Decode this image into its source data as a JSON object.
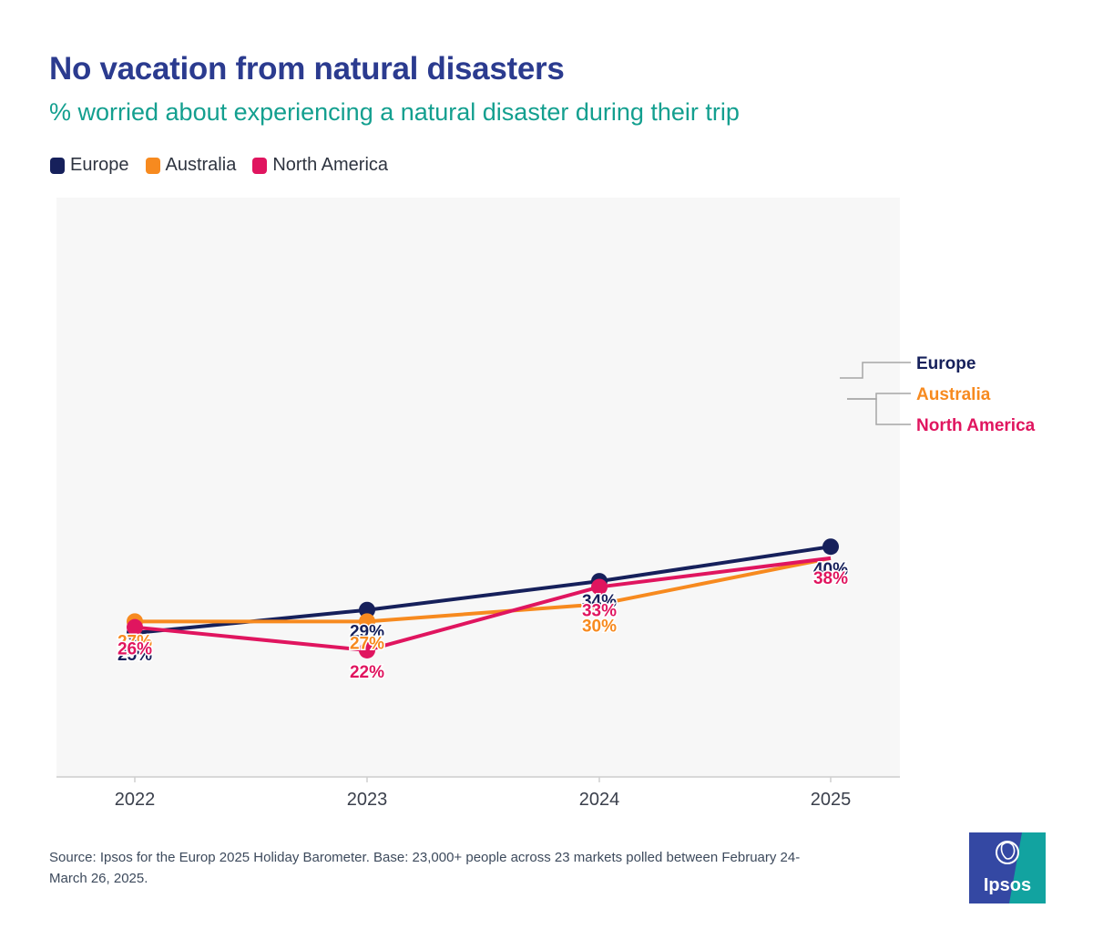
{
  "title": "No vacation from natural disasters",
  "subtitle": "% worried about experiencing a natural disaster during their trip",
  "legend": [
    {
      "label": "Europe",
      "color": "#16205b"
    },
    {
      "label": "Australia",
      "color": "#f78a1f"
    },
    {
      "label": "North America",
      "color": "#e0155f"
    }
  ],
  "chart_data": {
    "type": "line",
    "x": [
      "2022",
      "2023",
      "2024",
      "2025"
    ],
    "ylim": [
      0,
      60
    ],
    "grid": false,
    "legend_position": "top-left",
    "series": [
      {
        "name": "Europe",
        "color": "#16205b",
        "values": [
          25,
          29,
          34,
          40
        ],
        "labels": [
          "25%",
          "29%",
          "34%",
          "40%"
        ]
      },
      {
        "name": "Australia",
        "color": "#f78a1f",
        "values": [
          27,
          27,
          30,
          38
        ],
        "labels": [
          "27%",
          "27%",
          "30%",
          "38%"
        ]
      },
      {
        "name": "North America",
        "color": "#e0155f",
        "values": [
          26,
          22,
          33,
          38
        ],
        "labels": [
          "26%",
          "22%",
          "33%",
          "38%"
        ]
      }
    ],
    "end_labels": [
      "Europe",
      "Australia",
      "North America"
    ]
  },
  "source": "Source: Ipsos for the Europ 2025 Holiday Barometer. Base: 23,000+ people across 23 markets polled between February 24-March 26, 2025.",
  "logo": {
    "text": "Ipsos",
    "color_blue": "#3448a3",
    "color_teal": "#12a3a0"
  }
}
